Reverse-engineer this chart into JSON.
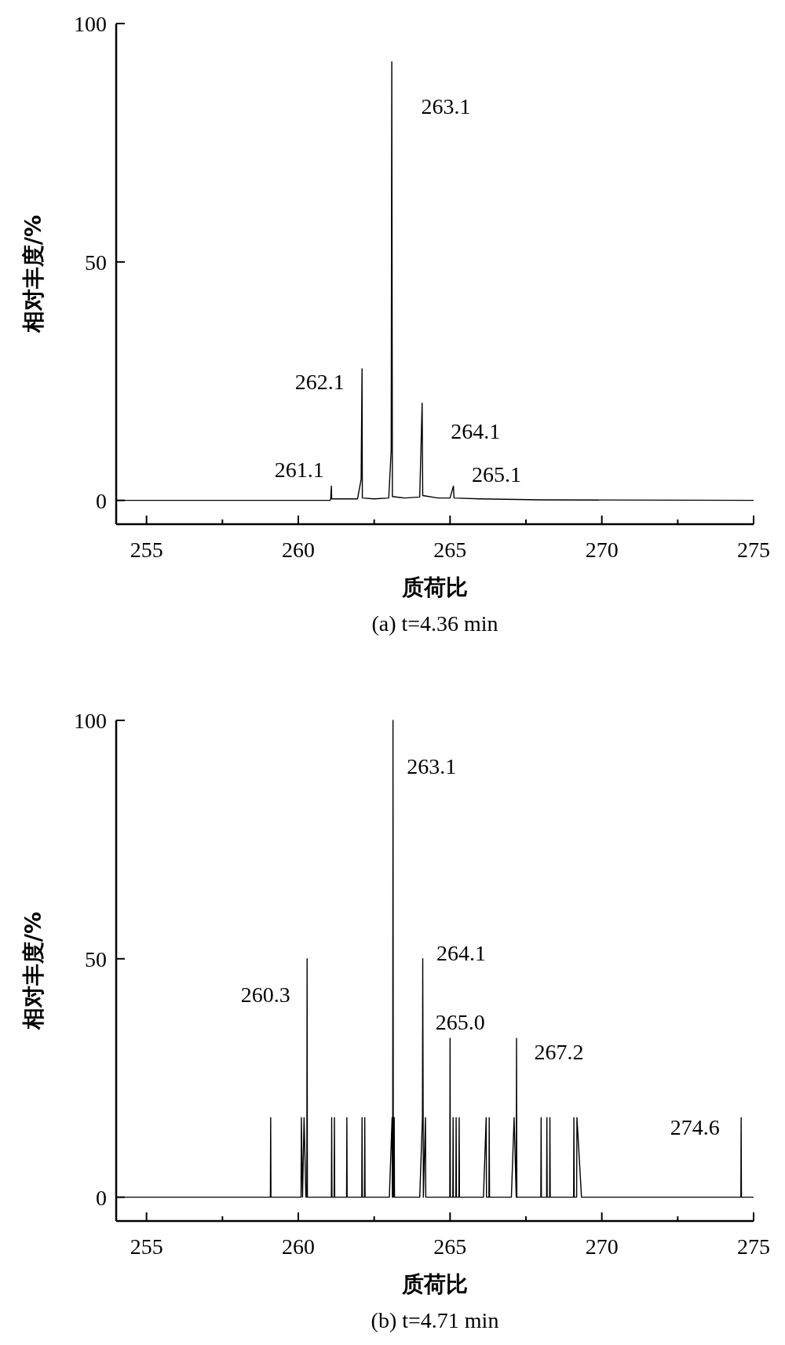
{
  "chart_data": [
    {
      "type": "line",
      "xlabel": "质荷比",
      "ylabel": "相对丰度/%",
      "xlim": [
        254,
        275
      ],
      "ylim": [
        -5,
        100
      ],
      "xticks": [
        255,
        {
          "value": 257.5,
          "label": null
        },
        260,
        {
          "value": 262.5,
          "label": null
        },
        265,
        {
          "value": 267.5,
          "label": null
        },
        270,
        {
          "value": 272.5,
          "label": null
        },
        275
      ],
      "yticks": [
        0,
        50,
        100
      ],
      "grid": false,
      "marker": "none",
      "line_style": "solid",
      "color": "#000000",
      "x": [
        254,
        259,
        261.05,
        261.07,
        261.09,
        261.1,
        261.95,
        262.07,
        262.1,
        262.11,
        262.5,
        262.98,
        263.06,
        263.08,
        263.1,
        263.5,
        264.0,
        264.08,
        264.1,
        264.6,
        265.0,
        265.11,
        265.13,
        266,
        268,
        275
      ],
      "values": [
        0,
        0,
        0,
        0.5,
        3,
        0.3,
        0.3,
        4.4,
        27.6,
        0.5,
        0.3,
        0.5,
        10.5,
        92,
        0.8,
        0.5,
        0.7,
        20.4,
        1,
        0.5,
        0.5,
        3,
        0.5,
        0.3,
        0.1,
        0
      ],
      "annotations": [
        {
          "text": "263.1",
          "x": 263.08,
          "y": 92
        },
        {
          "text": "262.1",
          "x": 262.1,
          "y": 27.6
        },
        {
          "text": "264.1",
          "x": 264.08,
          "y": 20.4
        },
        {
          "text": "261.1",
          "x": 261.09,
          "y": 3
        },
        {
          "text": "265.1",
          "x": 265.11,
          "y": 3
        },
        "(a) t=4.36 min"
      ]
    },
    {
      "type": "line",
      "xlabel": "质荷比",
      "ylabel": "相对丰度/%",
      "xlim": [
        254,
        275
      ],
      "ylim": [
        -5,
        100
      ],
      "xticks": [
        255,
        {
          "value": 257.5,
          "label": null
        },
        260,
        {
          "value": 262.5,
          "label": null
        },
        265,
        {
          "value": 267.5,
          "label": null
        },
        270,
        {
          "value": 272.5,
          "label": null
        },
        275
      ],
      "yticks": [
        0,
        50,
        100
      ],
      "grid": false,
      "marker": "none",
      "line_style": "solid",
      "color": "#000000",
      "x": [
        254,
        259.08,
        259.09,
        259.1,
        260.09,
        260.1,
        260.14,
        260.19,
        260.25,
        260.28,
        260.29,
        260.3,
        261.09,
        261.1,
        261.11,
        261.18,
        261.19,
        261.2,
        261.59,
        261.6,
        261.61,
        262.09,
        262.1,
        262.11,
        262.18,
        262.19,
        262.2,
        263.0,
        263.09,
        263.1,
        263.11,
        263.12,
        263.13,
        263.15,
        263.16,
        263.17,
        264.0,
        264.09,
        264.1,
        264.12,
        264.19,
        264.2,
        264.99,
        265.0,
        265.01,
        265.09,
        265.1,
        265.11,
        265.19,
        265.2,
        265.21,
        265.29,
        265.3,
        265.31,
        266.1,
        266.19,
        266.2,
        266.28,
        266.29,
        266.3,
        267.02,
        267.11,
        267.18,
        267.19,
        267.2,
        267.99,
        268.0,
        268.01,
        268.18,
        268.19,
        268.2,
        268.28,
        268.29,
        268.3,
        269.07,
        269.08,
        269.09,
        269.17,
        269.18,
        269.33,
        274.58,
        274.59,
        274.6,
        275
      ],
      "values": [
        0,
        0,
        16.7,
        0,
        0,
        16.7,
        0,
        16.7,
        0,
        0,
        50,
        0,
        0,
        16.7,
        0,
        0,
        16.7,
        0,
        0,
        16.7,
        0,
        0,
        16.7,
        0,
        0,
        16.7,
        0,
        0,
        16.7,
        0,
        0,
        100,
        0,
        0,
        16.7,
        0,
        0,
        16.7,
        50,
        0,
        16.7,
        0,
        0,
        33.3,
        0,
        0,
        16.7,
        0,
        0,
        16.7,
        0,
        0,
        16.7,
        0,
        0,
        16.7,
        0,
        0,
        16.7,
        0,
        0,
        16.7,
        0,
        33.3,
        0,
        0,
        16.7,
        0,
        0,
        16.7,
        0,
        0,
        16.7,
        0,
        0,
        16.7,
        0,
        0,
        16.7,
        0,
        0,
        16.7,
        0,
        0
      ],
      "annotations": [
        {
          "text": "263.1",
          "x": 263.12,
          "y": 100
        },
        {
          "text": "264.1",
          "x": 264.1,
          "y": 50
        },
        {
          "text": "260.3",
          "x": 260.29,
          "y": 50
        },
        {
          "text": "265.0",
          "x": 265.0,
          "y": 33.3
        },
        {
          "text": "267.2",
          "x": 267.19,
          "y": 33.3
        },
        {
          "text": "274.6",
          "x": 274.59,
          "y": 16.7
        },
        "(b) t=4.71 min"
      ]
    }
  ]
}
